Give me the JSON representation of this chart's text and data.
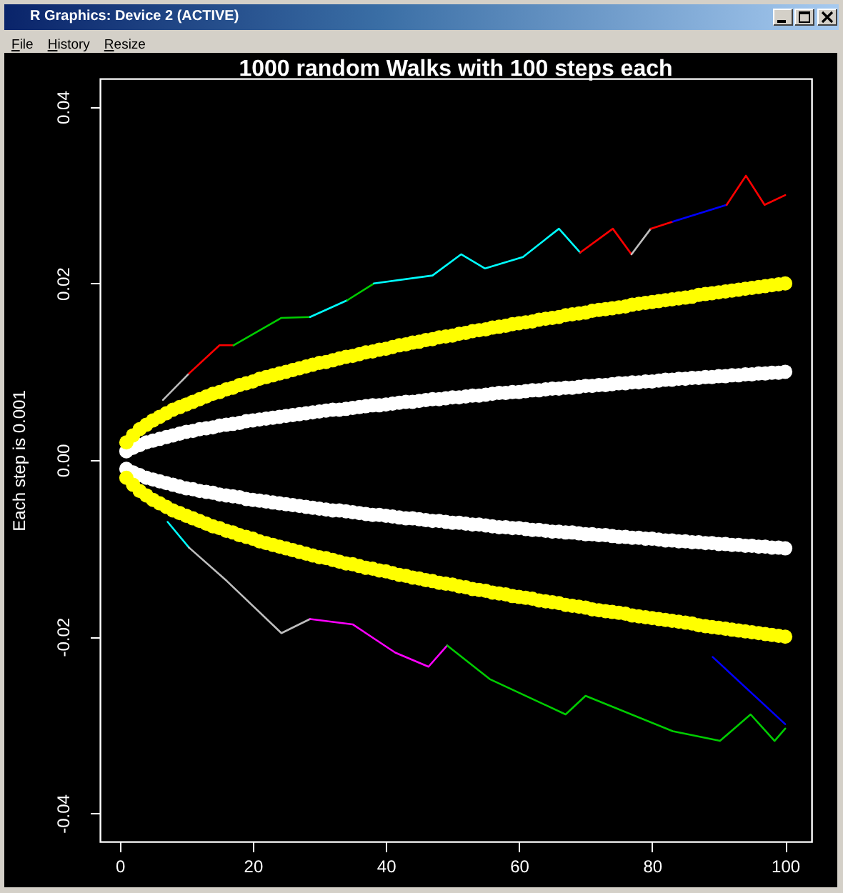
{
  "chart_data": {
    "type": "line",
    "title": "1000 random Walks with 100 steps each",
    "ylabel": "Each step is 0.001",
    "annotations": [
      "R Graphics: Device 2 (ACTIVE)",
      "File",
      "History",
      "Resize"
    ],
    "xlim": [
      -2.96,
      103.96
    ],
    "ylim": [
      -0.0432,
      0.0432
    ],
    "xticks": [
      0,
      20,
      40,
      60,
      80,
      100
    ],
    "yticks": [
      -0.04,
      -0.02,
      {
        "value": 0,
        "label": "0.00"
      },
      0.02,
      0.04
    ],
    "x": [
      1,
      2,
      3,
      4,
      5,
      6,
      7,
      8,
      9,
      10,
      11,
      12,
      13,
      14,
      15,
      16,
      17,
      18,
      19,
      20,
      21,
      22,
      23,
      24,
      25,
      26,
      27,
      28,
      29,
      30,
      31,
      32,
      33,
      34,
      35,
      36,
      37,
      38,
      39,
      40,
      41,
      42,
      43,
      44,
      45,
      46,
      47,
      48,
      49,
      50,
      51,
      52,
      53,
      54,
      55,
      56,
      57,
      58,
      59,
      60,
      61,
      62,
      63,
      64,
      65,
      66,
      67,
      68,
      69,
      70,
      71,
      72,
      73,
      74,
      75,
      76,
      77,
      78,
      79,
      80,
      81,
      82,
      83,
      84,
      85,
      86,
      87,
      88,
      89,
      90,
      91,
      92,
      93,
      94,
      95,
      96,
      97,
      98,
      99,
      100
    ],
    "series": [
      {
        "color": "#bebebe",
        "x": [
          6.5,
          10.4
        ],
        "values": [
          0.0068,
          0.0098
        ]
      },
      {
        "color": "#ff0000",
        "x": [
          10.4,
          15,
          17.1
        ],
        "values": [
          0.0098,
          0.013,
          0.013
        ]
      },
      {
        "color": "#00cd00",
        "x": [
          17.1,
          24.3,
          28.6
        ],
        "values": [
          0.013,
          0.0161,
          0.0162
        ]
      },
      {
        "color": "#00ffff",
        "x": [
          28.6,
          34.2
        ],
        "values": [
          0.0162,
          0.0181
        ]
      },
      {
        "color": "#00cd00",
        "x": [
          34.2,
          38.2
        ],
        "values": [
          0.0181,
          0.02
        ]
      },
      {
        "color": "#00ffff",
        "x": [
          38.2,
          47,
          51.3,
          54.9,
          60.6,
          66,
          69.2
        ],
        "values": [
          0.02,
          0.0209,
          0.0233,
          0.0217,
          0.023,
          0.0262,
          0.0235
        ]
      },
      {
        "color": "#ff0000",
        "x": [
          69.2,
          74.1,
          76.9
        ],
        "values": [
          0.0235,
          0.0262,
          0.0233
        ]
      },
      {
        "color": "#bebebe",
        "x": [
          76.9,
          79.8
        ],
        "values": [
          0.0233,
          0.0262
        ]
      },
      {
        "color": "#ff0000",
        "x": [
          79.8,
          83.1
        ],
        "values": [
          0.0262,
          0.027
        ]
      },
      {
        "color": "#0000ff",
        "x": [
          83.1,
          91.2
        ],
        "values": [
          0.027,
          0.0289
        ]
      },
      {
        "color": "#ff0000",
        "x": [
          91.2,
          94.1,
          96.9,
          100
        ],
        "values": [
          0.0289,
          0.0322,
          0.0289,
          0.03
        ]
      },
      {
        "color": "#00ffff",
        "x": [
          7.2,
          10.4
        ],
        "values": [
          -0.007,
          -0.0099
        ]
      },
      {
        "color": "#bebebe",
        "x": [
          10.4,
          16.1,
          24.3,
          28.6
        ],
        "values": [
          -0.0099,
          -0.0137,
          -0.0196,
          -0.018
        ]
      },
      {
        "color": "#ff00ff",
        "x": [
          28.6,
          35,
          41.4,
          46.4,
          49.2
        ],
        "values": [
          -0.018,
          -0.0186,
          -0.0218,
          -0.0234,
          -0.021
        ]
      },
      {
        "color": "#00cd00",
        "x": [
          49.2,
          55.6,
          67,
          70,
          83.1,
          90.2,
          94.8,
          98.4,
          100
        ],
        "values": [
          -0.021,
          -0.0248,
          -0.0288,
          -0.0267,
          -0.0307,
          -0.0318,
          -0.0288,
          -0.0318,
          -0.0304
        ]
      },
      {
        "color": "#0000ff",
        "x": [
          89.1,
          100
        ],
        "values": [
          -0.0223,
          -0.0299
        ]
      },
      {
        "type": "scatter",
        "marker": "circle",
        "color": "#ffffff",
        "values": [
          0.001,
          0.0014,
          0.0017,
          0.002,
          0.0022,
          0.0024,
          0.0026,
          0.0028,
          0.003,
          0.0032,
          0.0033,
          0.0035,
          0.0036,
          0.0037,
          0.0039,
          0.004,
          0.0041,
          0.0042,
          0.0044,
          0.0045,
          0.0046,
          0.0047,
          0.0048,
          0.0049,
          0.005,
          0.0051,
          0.0052,
          0.0053,
          0.0054,
          0.0055,
          0.0056,
          0.0057,
          0.0057,
          0.0058,
          0.0059,
          0.006,
          0.0061,
          0.0062,
          0.0062,
          0.0063,
          0.0064,
          0.0065,
          0.0066,
          0.0066,
          0.0067,
          0.0068,
          0.0069,
          0.0069,
          0.007,
          0.0071,
          0.0071,
          0.0072,
          0.0073,
          0.0073,
          0.0074,
          0.0075,
          0.0076,
          0.0076,
          0.0077,
          0.0077,
          0.0078,
          0.0079,
          0.0079,
          0.008,
          0.0081,
          0.0081,
          0.0082,
          0.0082,
          0.0083,
          0.0084,
          0.0084,
          0.0085,
          0.0085,
          0.0086,
          0.0087,
          0.0087,
          0.0088,
          0.0088,
          0.0089,
          0.0089,
          0.009,
          0.0091,
          0.0091,
          0.0092,
          0.0092,
          0.0093,
          0.0093,
          0.0094,
          0.0094,
          0.0095,
          0.0095,
          0.0096,
          0.0096,
          0.0097,
          0.0097,
          0.0098,
          0.0098,
          0.0099,
          0.0099,
          0.01
        ]
      },
      {
        "type": "scatter",
        "marker": "circle",
        "color": "#ffffff",
        "values": [
          -0.001,
          -0.0014,
          -0.0017,
          -0.002,
          -0.0022,
          -0.0024,
          -0.0026,
          -0.0028,
          -0.003,
          -0.0032,
          -0.0033,
          -0.0035,
          -0.0036,
          -0.0037,
          -0.0039,
          -0.004,
          -0.0041,
          -0.0042,
          -0.0044,
          -0.0045,
          -0.0046,
          -0.0047,
          -0.0048,
          -0.0049,
          -0.005,
          -0.0051,
          -0.0052,
          -0.0053,
          -0.0054,
          -0.0055,
          -0.0056,
          -0.0057,
          -0.0057,
          -0.0058,
          -0.0059,
          -0.006,
          -0.0061,
          -0.0062,
          -0.0062,
          -0.0063,
          -0.0064,
          -0.0065,
          -0.0066,
          -0.0066,
          -0.0067,
          -0.0068,
          -0.0069,
          -0.0069,
          -0.007,
          -0.0071,
          -0.0071,
          -0.0072,
          -0.0073,
          -0.0073,
          -0.0074,
          -0.0075,
          -0.0076,
          -0.0076,
          -0.0077,
          -0.0077,
          -0.0078,
          -0.0079,
          -0.0079,
          -0.008,
          -0.0081,
          -0.0081,
          -0.0082,
          -0.0082,
          -0.0083,
          -0.0084,
          -0.0084,
          -0.0085,
          -0.0085,
          -0.0086,
          -0.0087,
          -0.0087,
          -0.0088,
          -0.0088,
          -0.0089,
          -0.0089,
          -0.009,
          -0.0091,
          -0.0091,
          -0.0092,
          -0.0092,
          -0.0093,
          -0.0093,
          -0.0094,
          -0.0094,
          -0.0095,
          -0.0095,
          -0.0096,
          -0.0096,
          -0.0097,
          -0.0097,
          -0.0098,
          -0.0098,
          -0.0099,
          -0.0099,
          -0.01
        ]
      },
      {
        "type": "scatter",
        "marker": "circle",
        "color": "#ffff00",
        "values": [
          0.002,
          0.0028,
          0.0035,
          0.004,
          0.0045,
          0.0049,
          0.0053,
          0.0057,
          0.006,
          0.0063,
          0.0066,
          0.0069,
          0.0072,
          0.0075,
          0.0077,
          0.008,
          0.0082,
          0.0085,
          0.0087,
          0.0089,
          0.0092,
          0.0094,
          0.0096,
          0.0098,
          0.01,
          0.0102,
          0.0104,
          0.0106,
          0.0108,
          0.011,
          0.0111,
          0.0113,
          0.0115,
          0.0117,
          0.0118,
          0.012,
          0.0122,
          0.0123,
          0.0125,
          0.0126,
          0.0128,
          0.013,
          0.0131,
          0.0133,
          0.0134,
          0.0136,
          0.0137,
          0.0139,
          0.014,
          0.0141,
          0.0143,
          0.0144,
          0.0146,
          0.0147,
          0.0148,
          0.015,
          0.0151,
          0.0152,
          0.0154,
          0.0155,
          0.0156,
          0.0157,
          0.0159,
          0.016,
          0.0161,
          0.0162,
          0.0164,
          0.0165,
          0.0166,
          0.0167,
          0.0169,
          0.017,
          0.0171,
          0.0172,
          0.0173,
          0.0174,
          0.0176,
          0.0177,
          0.0178,
          0.0179,
          0.018,
          0.0181,
          0.0182,
          0.0183,
          0.0184,
          0.0185,
          0.0187,
          0.0188,
          0.0189,
          0.019,
          0.0191,
          0.0192,
          0.0193,
          0.0194,
          0.0195,
          0.0196,
          0.0197,
          0.0198,
          0.0199,
          0.02
        ]
      },
      {
        "type": "scatter",
        "marker": "circle",
        "color": "#ffff00",
        "values": [
          -0.002,
          -0.0028,
          -0.0035,
          -0.004,
          -0.0045,
          -0.0049,
          -0.0053,
          -0.0057,
          -0.006,
          -0.0063,
          -0.0066,
          -0.0069,
          -0.0072,
          -0.0075,
          -0.0077,
          -0.008,
          -0.0082,
          -0.0085,
          -0.0087,
          -0.0089,
          -0.0092,
          -0.0094,
          -0.0096,
          -0.0098,
          -0.01,
          -0.0102,
          -0.0104,
          -0.0106,
          -0.0108,
          -0.011,
          -0.0111,
          -0.0113,
          -0.0115,
          -0.0117,
          -0.0118,
          -0.012,
          -0.0122,
          -0.0123,
          -0.0125,
          -0.0126,
          -0.0128,
          -0.013,
          -0.0131,
          -0.0133,
          -0.0134,
          -0.0136,
          -0.0137,
          -0.0139,
          -0.014,
          -0.0141,
          -0.0143,
          -0.0144,
          -0.0146,
          -0.0147,
          -0.0148,
          -0.015,
          -0.0151,
          -0.0152,
          -0.0154,
          -0.0155,
          -0.0156,
          -0.0157,
          -0.0159,
          -0.016,
          -0.0161,
          -0.0162,
          -0.0164,
          -0.0165,
          -0.0166,
          -0.0167,
          -0.0169,
          -0.017,
          -0.0171,
          -0.0172,
          -0.0173,
          -0.0174,
          -0.0176,
          -0.0177,
          -0.0178,
          -0.0179,
          -0.018,
          -0.0181,
          -0.0182,
          -0.0183,
          -0.0184,
          -0.0185,
          -0.0187,
          -0.0188,
          -0.0189,
          -0.019,
          -0.0191,
          -0.0192,
          -0.0193,
          -0.0194,
          -0.0195,
          -0.0196,
          -0.0197,
          -0.0198,
          -0.0199,
          -0.02
        ]
      }
    ]
  }
}
